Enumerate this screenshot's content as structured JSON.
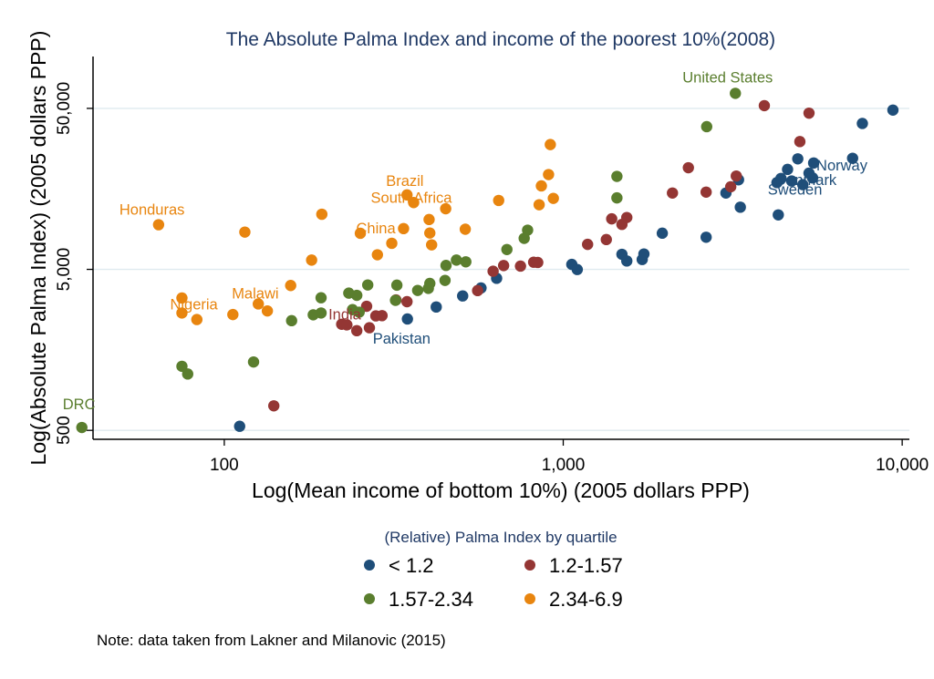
{
  "chart_data": {
    "type": "scatter",
    "title": "The Absolute Palma Index and income of the poorest 10%(2008)",
    "xlabel": "Log(Mean income of bottom 10%) (2005 dollars PPP)",
    "ylabel": "Log(Absolute Palma Index) (2005 dollars PPP)",
    "x_scale": "log",
    "y_scale": "log",
    "xlim": [
      41,
      10500
    ],
    "ylim": [
      440,
      105000
    ],
    "x_ticks": [
      100,
      1000,
      10000
    ],
    "x_tick_labels": [
      "100",
      "1,000",
      "10,000"
    ],
    "y_ticks": [
      500,
      5000,
      50000
    ],
    "y_tick_labels": [
      "500",
      "5,000",
      "50,000"
    ],
    "grid": "horizontal",
    "legend": {
      "title": "(Relative) Palma Index by quartile",
      "position": "bottom"
    },
    "note": "Note: data taken from Lakner and Milanovic (2015)",
    "series": [
      {
        "name": "< 1.2",
        "color": "#1f4e79",
        "points": [
          [
            111,
            530
          ],
          [
            347,
            2460
          ],
          [
            422,
            2920
          ],
          [
            505,
            3420
          ],
          [
            572,
            3830
          ],
          [
            636,
            4400
          ],
          [
            1060,
            5370
          ],
          [
            1100,
            4990
          ],
          [
            1490,
            6200
          ],
          [
            1540,
            5640
          ],
          [
            1710,
            5760
          ],
          [
            1730,
            6230
          ],
          [
            1960,
            8390
          ],
          [
            2640,
            7920
          ],
          [
            3020,
            14900
          ],
          [
            3330,
            12170
          ],
          [
            3290,
            18000
          ],
          [
            4310,
            10900
          ],
          [
            4270,
            17300
          ],
          [
            4390,
            18350
          ],
          [
            4590,
            20900
          ],
          [
            4720,
            17700
          ],
          [
            4920,
            24300
          ],
          [
            5090,
            16800
          ],
          [
            5310,
            19800
          ],
          [
            5440,
            18500
          ],
          [
            5480,
            22900
          ],
          [
            7140,
            24500
          ],
          [
            7630,
            40300
          ],
          [
            9390,
            48800
          ]
        ]
      },
      {
        "name": "1.2-1.57",
        "color": "#943634",
        "points": [
          [
            140,
            710
          ],
          [
            222,
            2280
          ],
          [
            230,
            2260
          ],
          [
            246,
            2080
          ],
          [
            263,
            2950
          ],
          [
            268,
            2170
          ],
          [
            280,
            2570
          ],
          [
            292,
            2580
          ],
          [
            346,
            3150
          ],
          [
            321,
            3230
          ],
          [
            559,
            3690
          ],
          [
            621,
            4870
          ],
          [
            667,
            5280
          ],
          [
            748,
            5240
          ],
          [
            818,
            5540
          ],
          [
            841,
            5520
          ],
          [
            1180,
            7150
          ],
          [
            1340,
            7660
          ],
          [
            1390,
            10300
          ],
          [
            1490,
            9510
          ],
          [
            1540,
            10500
          ],
          [
            2100,
            14900
          ],
          [
            2340,
            21400
          ],
          [
            2640,
            15100
          ],
          [
            3120,
            16300
          ],
          [
            3240,
            19000
          ],
          [
            3920,
            52000
          ],
          [
            4990,
            31100
          ],
          [
            5310,
            46700
          ]
        ]
      },
      {
        "name": "1.57-2.34",
        "color": "#5a7e2e",
        "points": [
          [
            38,
            521
          ],
          [
            75,
            1250
          ],
          [
            78,
            1120
          ],
          [
            122,
            1330
          ],
          [
            158,
            2400
          ],
          [
            183,
            2610
          ],
          [
            193,
            2680
          ],
          [
            193,
            3330
          ],
          [
            239,
            2810
          ],
          [
            233,
            3560
          ],
          [
            246,
            3450
          ],
          [
            250,
            2710
          ],
          [
            265,
            4000
          ],
          [
            320,
            3210
          ],
          [
            323,
            3990
          ],
          [
            372,
            3700
          ],
          [
            400,
            3810
          ],
          [
            404,
            4090
          ],
          [
            448,
            4270
          ],
          [
            451,
            5290
          ],
          [
            484,
            5710
          ],
          [
            516,
            5570
          ],
          [
            682,
            6640
          ],
          [
            767,
            7790
          ],
          [
            785,
            8760
          ],
          [
            1440,
            18900
          ],
          [
            1440,
            13900
          ],
          [
            2650,
            38500
          ],
          [
            3220,
            62000
          ]
        ]
      },
      {
        "name": "2.34-6.9",
        "color": "#e8850f",
        "points": [
          [
            64,
            9470
          ],
          [
            75,
            3320
          ],
          [
            75,
            2680
          ],
          [
            83,
            2440
          ],
          [
            106,
            2620
          ],
          [
            115,
            8520
          ],
          [
            126,
            3050
          ],
          [
            134,
            2760
          ],
          [
            157,
            3970
          ],
          [
            181,
            5710
          ],
          [
            194,
            11000
          ],
          [
            252,
            8380
          ],
          [
            283,
            6160
          ],
          [
            312,
            7260
          ],
          [
            338,
            8960
          ],
          [
            346,
            14500
          ],
          [
            362,
            13000
          ],
          [
            402,
            10200
          ],
          [
            404,
            8410
          ],
          [
            409,
            7100
          ],
          [
            450,
            11900
          ],
          [
            514,
            8880
          ],
          [
            645,
            13400
          ],
          [
            849,
            12600
          ],
          [
            862,
            16500
          ],
          [
            905,
            19400
          ],
          [
            916,
            29800
          ],
          [
            935,
            13800
          ]
        ]
      }
    ],
    "annotations": [
      {
        "text": "United States",
        "x": 3220,
        "y": 62000,
        "color": "#5a7e2e"
      },
      {
        "text": "Norway",
        "x": 5480,
        "y": 22900,
        "color": "#1f4e79"
      },
      {
        "text": "Denmark",
        "x": 4390,
        "y": 18350,
        "color": "#1f4e79"
      },
      {
        "text": "Sweden",
        "x": 4270,
        "y": 17300,
        "color": "#1f4e79"
      },
      {
        "text": "Pakistan",
        "x": 347,
        "y": 2460,
        "color": "#1f4e79"
      },
      {
        "text": "India",
        "x": 280,
        "y": 2570,
        "color": "#943634"
      },
      {
        "text": "DRC",
        "x": 38,
        "y": 521,
        "color": "#5a7e2e"
      },
      {
        "text": "Honduras",
        "x": 64,
        "y": 9470,
        "color": "#e8850f"
      },
      {
        "text": "Brazil",
        "x": 346,
        "y": 14500,
        "color": "#e8850f"
      },
      {
        "text": "South Africa",
        "x": 362,
        "y": 13000,
        "color": "#e8850f"
      },
      {
        "text": "China",
        "x": 312,
        "y": 7260,
        "color": "#e8850f"
      },
      {
        "text": "Malawi",
        "x": 126,
        "y": 3050,
        "color": "#e8850f"
      },
      {
        "text": "Nigeria",
        "x": 75,
        "y": 2680,
        "color": "#e8850f"
      }
    ]
  }
}
